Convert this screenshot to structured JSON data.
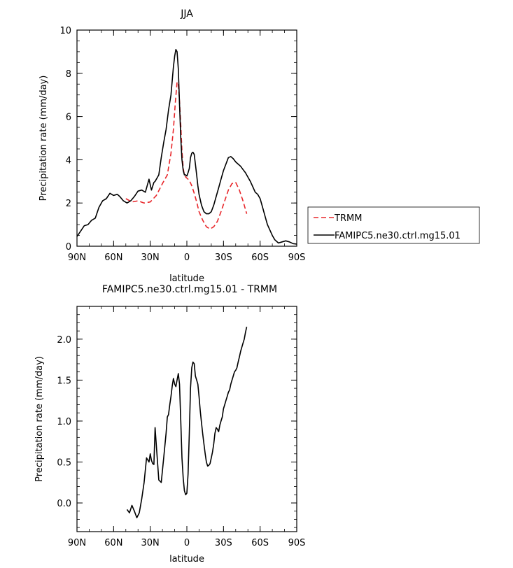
{
  "chart_data": [
    {
      "type": "line",
      "title": "JJA",
      "xlabel": "latitude",
      "ylabel": "Precipitation rate (mm/day)",
      "xlim": [
        90,
        -90
      ],
      "ylim": [
        0,
        10
      ],
      "x_ticks": [
        {
          "value": 90,
          "label": "90N"
        },
        {
          "value": 60,
          "label": "60N"
        },
        {
          "value": 30,
          "label": "30N"
        },
        {
          "value": 0,
          "label": "0"
        },
        {
          "value": -30,
          "label": "30S"
        },
        {
          "value": -60,
          "label": "60S"
        },
        {
          "value": -90,
          "label": "90S"
        }
      ],
      "y_ticks": [
        {
          "value": 0,
          "label": "0"
        },
        {
          "value": 2,
          "label": "2"
        },
        {
          "value": 4,
          "label": "4"
        },
        {
          "value": 6,
          "label": "6"
        },
        {
          "value": 8,
          "label": "8"
        },
        {
          "value": 10,
          "label": "10"
        }
      ],
      "legend": {
        "placement": "right",
        "entries": [
          {
            "label": "TRMM",
            "color": "#e8262a",
            "style": "dashed"
          },
          {
            "label": "FAMIPC5.ne30.ctrl.mg15.01",
            "color": "#000000",
            "style": "solid"
          }
        ]
      },
      "series": [
        {
          "name": "TRMM",
          "color": "#e8262a",
          "dash": true,
          "x": [
            50,
            45,
            40,
            35,
            30,
            25,
            20,
            16,
            13,
            11,
            9.5,
            8,
            7,
            6,
            5,
            4,
            3,
            2,
            1,
            0,
            -2,
            -4,
            -6,
            -8,
            -10,
            -13,
            -16,
            -19,
            -22,
            -25,
            -28,
            -31,
            -34,
            -37,
            -40,
            -43,
            -46,
            -49
          ],
          "y": [
            2.2,
            2.05,
            2.1,
            2.0,
            2.05,
            2.35,
            2.9,
            3.3,
            4.3,
            5.4,
            6.6,
            7.6,
            7.5,
            6.7,
            5.6,
            4.4,
            3.6,
            3.3,
            3.2,
            3.15,
            3.05,
            2.8,
            2.45,
            2.05,
            1.6,
            1.2,
            0.9,
            0.8,
            0.9,
            1.15,
            1.6,
            2.1,
            2.6,
            2.9,
            2.95,
            2.6,
            2.1,
            1.5
          ]
        },
        {
          "name": "FAMIPC5.ne30.ctrl.mg15.01",
          "color": "#000000",
          "dash": false,
          "x": [
            90,
            87,
            84,
            81,
            78,
            75,
            72,
            69,
            66,
            63,
            60,
            57,
            55,
            52,
            49,
            46,
            43,
            40,
            37,
            34,
            31,
            29,
            27,
            26,
            25,
            23,
            21,
            19,
            17,
            15,
            13,
            11,
            10,
            9,
            8,
            7,
            6,
            5,
            4,
            3,
            2,
            1,
            0,
            -1,
            -2,
            -3,
            -4,
            -5,
            -6,
            -7,
            -8,
            -9,
            -10,
            -12,
            -14,
            -16,
            -18,
            -20,
            -22,
            -24,
            -26,
            -28,
            -30,
            -32,
            -34,
            -36,
            -38,
            -40,
            -42,
            -44,
            -46,
            -48,
            -50,
            -52,
            -54,
            -56,
            -58,
            -60,
            -62,
            -64,
            -66,
            -68,
            -70,
            -72,
            -75,
            -78,
            -81,
            -84,
            -87,
            -90
          ],
          "y": [
            0.45,
            0.7,
            0.95,
            1.0,
            1.2,
            1.3,
            1.8,
            2.1,
            2.2,
            2.45,
            2.35,
            2.4,
            2.3,
            2.1,
            2.0,
            2.1,
            2.3,
            2.55,
            2.6,
            2.5,
            3.1,
            2.6,
            2.95,
            3.0,
            3.1,
            3.3,
            4.1,
            4.8,
            5.4,
            6.3,
            7.0,
            8.3,
            8.8,
            9.1,
            9.0,
            8.2,
            6.6,
            5.0,
            4.0,
            3.5,
            3.3,
            3.3,
            3.25,
            3.4,
            3.6,
            4.1,
            4.3,
            4.35,
            4.25,
            3.8,
            3.3,
            2.8,
            2.4,
            1.9,
            1.6,
            1.5,
            1.5,
            1.6,
            1.9,
            2.3,
            2.7,
            3.1,
            3.5,
            3.8,
            4.1,
            4.15,
            4.05,
            3.9,
            3.8,
            3.7,
            3.55,
            3.4,
            3.2,
            3.0,
            2.75,
            2.5,
            2.4,
            2.2,
            1.8,
            1.4,
            1.0,
            0.75,
            0.5,
            0.3,
            0.15,
            0.2,
            0.25,
            0.2,
            0.12,
            0.1
          ]
        }
      ]
    },
    {
      "type": "line",
      "title": "FAMIPC5.ne30.ctrl.mg15.01 - TRMM",
      "xlabel": "latitude",
      "ylabel": "Precipitation rate (mm/day)",
      "xlim": [
        90,
        -90
      ],
      "ylim": [
        -0.35,
        2.4
      ],
      "x_ticks": [
        {
          "value": 90,
          "label": "90N"
        },
        {
          "value": 60,
          "label": "60N"
        },
        {
          "value": 30,
          "label": "30N"
        },
        {
          "value": 0,
          "label": "0"
        },
        {
          "value": -30,
          "label": "30S"
        },
        {
          "value": -60,
          "label": "60S"
        },
        {
          "value": -90,
          "label": "90S"
        }
      ],
      "y_ticks": [
        {
          "value": 0,
          "label": "0.0"
        },
        {
          "value": 0.5,
          "label": "0.5"
        },
        {
          "value": 1.0,
          "label": "1.0"
        },
        {
          "value": 1.5,
          "label": "1.5"
        },
        {
          "value": 2.0,
          "label": "2.0"
        }
      ],
      "series": [
        {
          "color": "#000000",
          "x": [
            49,
            47,
            45,
            43,
            41,
            39,
            37,
            35,
            33,
            31,
            30,
            29,
            28,
            27,
            26,
            25,
            23,
            21,
            19,
            17,
            16,
            15,
            14,
            13,
            12,
            11,
            10,
            9,
            8,
            7,
            6,
            5,
            4,
            3,
            2,
            1,
            0,
            -1,
            -2,
            -3,
            -4,
            -5,
            -6,
            -7,
            -8,
            -9,
            -10,
            -11,
            -12,
            -13,
            -14,
            -15,
            -16,
            -17,
            -18,
            -19,
            -20,
            -21,
            -22,
            -23,
            -24,
            -25,
            -26,
            -27,
            -28,
            -29,
            -30,
            -31,
            -32,
            -33,
            -34,
            -35,
            -36,
            -37,
            -38,
            -39,
            -40,
            -41,
            -42,
            -43,
            -44,
            -45,
            -46,
            -47,
            -48,
            -49
          ],
          "y": [
            -0.08,
            -0.12,
            -0.03,
            -0.1,
            -0.18,
            -0.12,
            0.05,
            0.25,
            0.55,
            0.5,
            0.6,
            0.52,
            0.48,
            0.47,
            0.92,
            0.7,
            0.28,
            0.25,
            0.55,
            0.85,
            1.05,
            1.08,
            1.2,
            1.3,
            1.43,
            1.52,
            1.45,
            1.42,
            1.5,
            1.58,
            1.45,
            1.0,
            0.55,
            0.3,
            0.15,
            0.1,
            0.12,
            0.35,
            0.85,
            1.4,
            1.65,
            1.72,
            1.7,
            1.55,
            1.5,
            1.45,
            1.3,
            1.12,
            0.98,
            0.84,
            0.72,
            0.6,
            0.5,
            0.45,
            0.46,
            0.48,
            0.55,
            0.62,
            0.72,
            0.85,
            0.92,
            0.9,
            0.87,
            0.95,
            1.0,
            1.05,
            1.15,
            1.2,
            1.25,
            1.3,
            1.35,
            1.38,
            1.45,
            1.5,
            1.55,
            1.6,
            1.62,
            1.65,
            1.72,
            1.78,
            1.85,
            1.9,
            1.95,
            2.0,
            2.08,
            2.15
          ]
        }
      ]
    }
  ]
}
